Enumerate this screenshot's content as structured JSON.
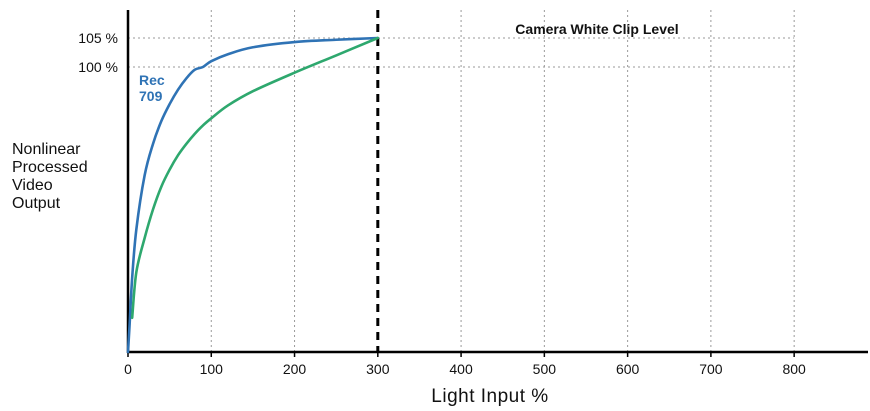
{
  "chart_data": {
    "type": "line",
    "xlabel": "Light Input  %",
    "ylabel_lines": [
      "Nonlinear",
      "Processed",
      "Video",
      "Output"
    ],
    "x_ticks": [
      0,
      100,
      200,
      300,
      400,
      500,
      600,
      700,
      800
    ],
    "y_ticks": [
      {
        "value": 100,
        "label": "100 %"
      },
      {
        "value": 105,
        "label": "105 %"
      }
    ],
    "xlim": [
      0,
      890
    ],
    "ylim": [
      0,
      110
    ],
    "grid": true,
    "annotations": [
      {
        "text": "Camera White Clip Level",
        "x": 300,
        "style": "vertical-dashed-line"
      }
    ],
    "series": [
      {
        "name": "Rec 709",
        "name_lines": [
          "Rec",
          "709"
        ],
        "color": "#2f73b5",
        "points": [
          [
            0,
            0
          ],
          [
            2,
            10
          ],
          [
            5,
            26
          ],
          [
            10,
            43
          ],
          [
            20,
            62
          ],
          [
            30,
            73
          ],
          [
            40,
            81
          ],
          [
            50,
            87
          ],
          [
            60,
            92
          ],
          [
            70,
            96
          ],
          [
            80,
            99
          ],
          [
            90,
            100
          ],
          [
            100,
            101
          ],
          [
            120,
            102.2
          ],
          [
            150,
            103.4
          ],
          [
            200,
            104.3
          ],
          [
            250,
            104.7
          ],
          [
            300,
            105
          ]
        ]
      },
      {
        "name": "",
        "color": "#2ea86e",
        "points": [
          [
            5,
            12
          ],
          [
            10,
            28
          ],
          [
            20,
            40
          ],
          [
            30,
            50
          ],
          [
            40,
            58
          ],
          [
            50,
            64
          ],
          [
            60,
            69
          ],
          [
            70,
            73
          ],
          [
            80,
            76.5
          ],
          [
            90,
            79.5
          ],
          [
            100,
            82
          ],
          [
            120,
            86.5
          ],
          [
            150,
            91.5
          ],
          [
            200,
            98
          ],
          [
            250,
            102
          ],
          [
            300,
            105
          ]
        ]
      }
    ]
  }
}
